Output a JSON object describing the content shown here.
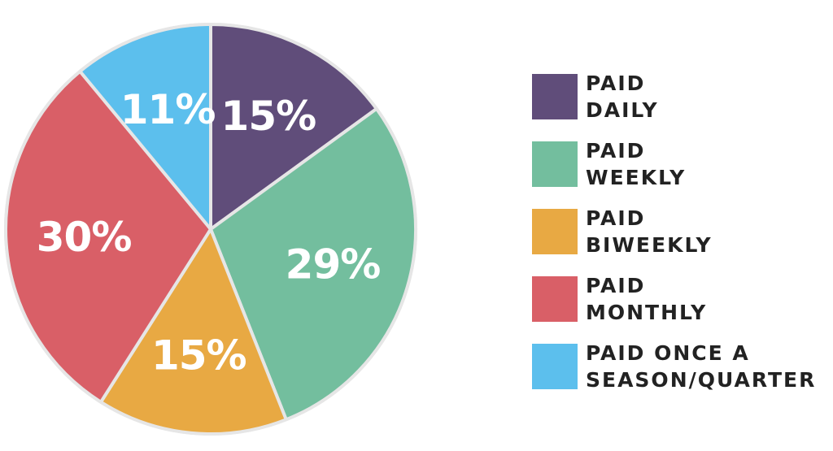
{
  "chart_data": {
    "type": "pie",
    "title": "",
    "slices": [
      {
        "label": "PAID DAILY",
        "value": 15,
        "display": "15%",
        "color": "#604d7a"
      },
      {
        "label": "PAID WEEKLY",
        "value": 29,
        "display": "29%",
        "color": "#73be9e"
      },
      {
        "label": "PAID BIWEEKLY",
        "value": 15,
        "display": "15%",
        "color": "#e8a943"
      },
      {
        "label": "PAID MONTHLY",
        "value": 30,
        "display": "30%",
        "color": "#d95f67"
      },
      {
        "label": "PAID ONCE A\nSEASON/QUARTER",
        "value": 11,
        "display": "11%",
        "color": "#5cbfed"
      }
    ],
    "legend_position": "right",
    "border_color": "#e6e6e6"
  }
}
